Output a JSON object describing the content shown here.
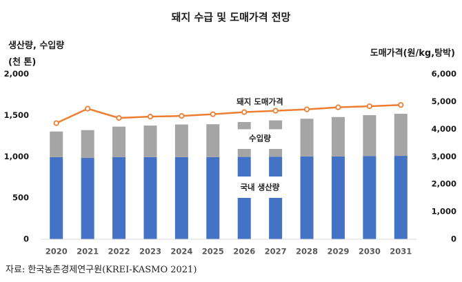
{
  "chart_data": {
    "type": "bar",
    "title": "돼지 수급 및 도매가격 전망",
    "ylabel_left_lines": [
      "생산량, 수입량",
      "(천 톤)"
    ],
    "ylabel_right": "도매가격(원/kg,탕박)",
    "categories": [
      "2020",
      "2021",
      "2022",
      "2023",
      "2024",
      "2025",
      "2026",
      "2027",
      "2028",
      "2029",
      "2030",
      "2031"
    ],
    "ylim_left": [
      0,
      2000
    ],
    "yticks_left": [
      0,
      500,
      1000,
      1500,
      2000
    ],
    "ytick_labels_left": [
      "0",
      "500",
      "1,000",
      "1,500",
      "2,000"
    ],
    "ylim_right": [
      0,
      6000
    ],
    "yticks_right": [
      0,
      1000,
      2000,
      3000,
      4000,
      5000,
      6000
    ],
    "ytick_labels_right": [
      "0",
      "1,000",
      "2,000",
      "3,000",
      "4,000",
      "5,000",
      "6,000"
    ],
    "grid": false,
    "series": [
      {
        "name": "국내 생산량",
        "kind": "stacked-bar",
        "axis": "left",
        "color": "#4472C4",
        "values": [
          995,
          985,
          995,
          995,
          995,
          995,
          997,
          1000,
          1003,
          1003,
          1008,
          1010
        ]
      },
      {
        "name": "수입량",
        "kind": "stacked-bar",
        "axis": "left",
        "color": "#A5A5A5",
        "values": [
          310,
          337,
          369,
          382,
          395,
          398,
          423,
          440,
          457,
          477,
          495,
          510
        ]
      },
      {
        "name": "돼지 도매가격",
        "kind": "line",
        "axis": "right",
        "color": "#ED7D31",
        "values": [
          4218,
          4745,
          4406,
          4456,
          4481,
          4544,
          4619,
          4669,
          4720,
          4795,
          4833,
          4880
        ]
      }
    ],
    "annotations": [
      {
        "text": "돼지 도매가격",
        "series": "돼지 도매가격"
      },
      {
        "text": "수입량",
        "series": "수입량"
      },
      {
        "text": "국내 생산량",
        "series": "국내 생산량"
      }
    ],
    "legend": "inline-labels"
  },
  "source": "자료: 한국농촌경제연구원(KREI-KASMO  2021)"
}
